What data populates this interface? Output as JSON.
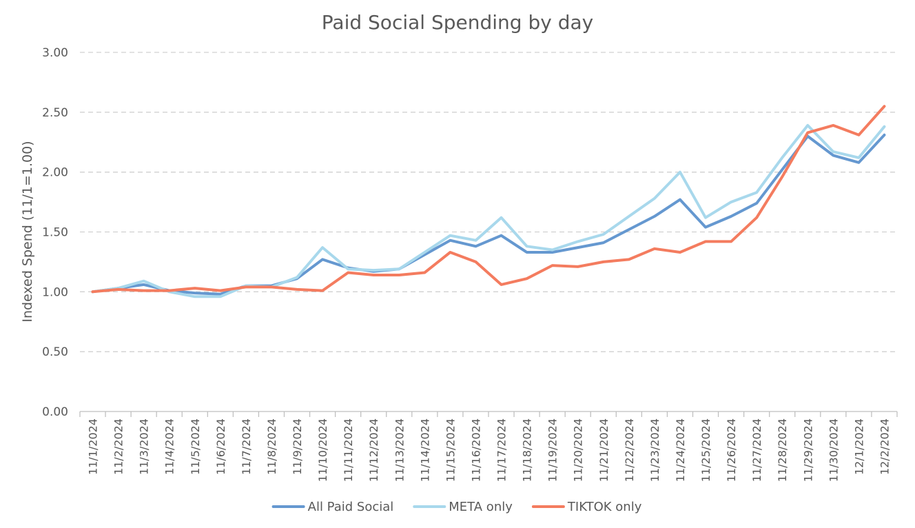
{
  "chart_data": {
    "type": "line",
    "title": "Paid Social Spending by day",
    "xlabel": "",
    "ylabel": "Indexed Spend (11/1=1.00)",
    "ylim": [
      0,
      3
    ],
    "yticks": [
      "0.00",
      "0.50",
      "1.00",
      "1.50",
      "2.00",
      "2.50",
      "3.00"
    ],
    "grid": true,
    "legend_position": "bottom",
    "categories": [
      "11/1/2024",
      "11/2/2024",
      "11/3/2024",
      "11/4/2024",
      "11/5/2024",
      "11/6/2024",
      "11/7/2024",
      "11/8/2024",
      "11/9/2024",
      "11/10/2024",
      "11/11/2024",
      "11/12/2024",
      "11/13/2024",
      "11/14/2024",
      "11/15/2024",
      "11/16/2024",
      "11/17/2024",
      "11/18/2024",
      "11/19/2024",
      "11/20/2024",
      "11/21/2024",
      "11/22/2024",
      "11/23/2024",
      "11/24/2024",
      "11/25/2024",
      "11/26/2024",
      "11/27/2024",
      "11/28/2024",
      "11/29/2024",
      "11/30/2024",
      "12/1/2024",
      "12/2/2024"
    ],
    "series": [
      {
        "name": "All Paid Social",
        "color": "#6598d0",
        "values": [
          1.0,
          1.03,
          1.06,
          1.01,
          0.99,
          0.98,
          1.05,
          1.05,
          1.11,
          1.27,
          1.2,
          1.17,
          1.19,
          1.31,
          1.43,
          1.38,
          1.47,
          1.33,
          1.33,
          1.37,
          1.41,
          1.52,
          1.63,
          1.77,
          1.54,
          1.63,
          1.74,
          2.02,
          2.3,
          2.14,
          2.08,
          2.31
        ]
      },
      {
        "name": "META only",
        "color": "#a8d8ec",
        "values": [
          1.0,
          1.03,
          1.09,
          1.0,
          0.96,
          0.96,
          1.05,
          1.04,
          1.12,
          1.37,
          1.19,
          1.18,
          1.19,
          1.33,
          1.47,
          1.43,
          1.62,
          1.38,
          1.35,
          1.42,
          1.48,
          1.63,
          1.78,
          2.0,
          1.62,
          1.75,
          1.83,
          2.12,
          2.39,
          2.17,
          2.12,
          2.38
        ]
      },
      {
        "name": "TIKTOK only",
        "color": "#f47c5f",
        "values": [
          1.0,
          1.02,
          1.01,
          1.01,
          1.03,
          1.01,
          1.04,
          1.04,
          1.02,
          1.01,
          1.16,
          1.14,
          1.14,
          1.16,
          1.33,
          1.25,
          1.06,
          1.11,
          1.22,
          1.21,
          1.25,
          1.27,
          1.36,
          1.33,
          1.42,
          1.42,
          1.62,
          1.96,
          2.33,
          2.39,
          2.31,
          2.55
        ]
      }
    ]
  }
}
